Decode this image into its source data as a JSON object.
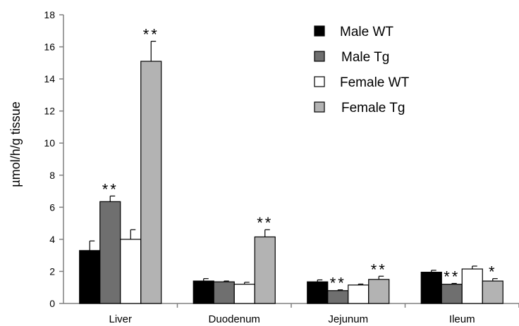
{
  "chart_data": {
    "type": "bar",
    "ylabel": "µmol/h/g tissue",
    "xlabel": "",
    "ylim": [
      0,
      18
    ],
    "yticks": [
      0,
      2,
      4,
      6,
      8,
      10,
      12,
      14,
      16,
      18
    ],
    "categories": [
      "Liver",
      "Duodenum",
      "Jejunum",
      "Ileum"
    ],
    "series": [
      {
        "name": "Male WT",
        "color": "#000000",
        "values": [
          3.3,
          1.4,
          1.35,
          1.95
        ],
        "errors": [
          0.6,
          0.15,
          0.12,
          0.12
        ],
        "significance": [
          "",
          "",
          "",
          ""
        ]
      },
      {
        "name": "Male Tg",
        "color": "#6f6f6f",
        "values": [
          6.35,
          1.35,
          0.8,
          1.2
        ],
        "errors": [
          0.35,
          0.05,
          0.05,
          0.05
        ],
        "significance": [
          "**",
          "",
          "**",
          "**"
        ]
      },
      {
        "name": "Female WT",
        "color": "#ffffff",
        "values": [
          4.0,
          1.2,
          1.15,
          2.15
        ],
        "errors": [
          0.6,
          0.12,
          0.06,
          0.18
        ],
        "significance": [
          "",
          "",
          "",
          ""
        ]
      },
      {
        "name": "Female Tg",
        "color": "#b3b3b3",
        "values": [
          15.1,
          4.15,
          1.5,
          1.4
        ],
        "errors": [
          1.25,
          0.45,
          0.2,
          0.15
        ],
        "significance": [
          "**",
          "**",
          "**",
          "*"
        ]
      }
    ],
    "legend_position": "top-right",
    "grid": false
  }
}
